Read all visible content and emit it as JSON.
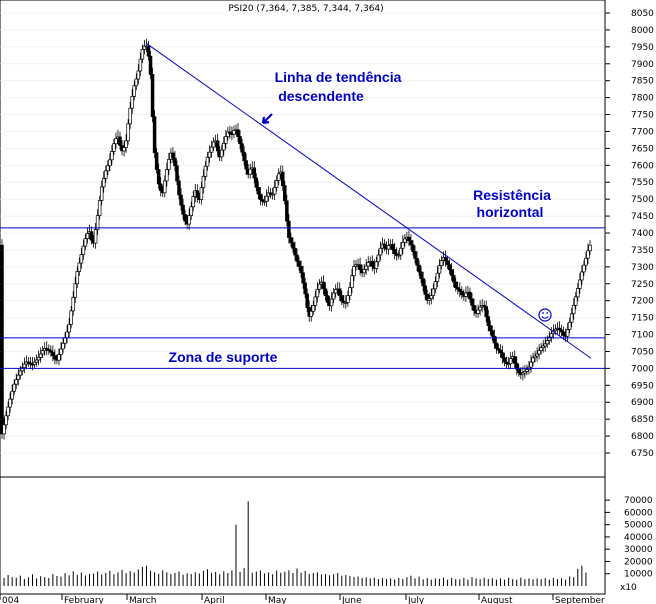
{
  "chart_data": {
    "type": "candlestick",
    "title": "PSI20 (7,364, 7,385, 7,344, 7,364)",
    "price_axis": {
      "ylim": [
        6750,
        8050
      ],
      "ticks": [
        6750,
        6800,
        6850,
        6900,
        6950,
        7000,
        7050,
        7100,
        7150,
        7200,
        7250,
        7300,
        7350,
        7400,
        7450,
        7500,
        7550,
        7600,
        7650,
        7700,
        7750,
        7800,
        7850,
        7900,
        7950,
        8000,
        8050
      ]
    },
    "volume_axis": {
      "ylim": [
        0,
        75000
      ],
      "ticks": [
        10000,
        20000,
        30000,
        40000,
        50000,
        60000,
        70000
      ],
      "unit_label": "x10"
    },
    "x_labels": [
      "004",
      "February",
      "March",
      "April",
      "May",
      "June",
      "July",
      "August",
      "September"
    ],
    "price_path": [
      [
        0,
        6800
      ],
      [
        6,
        6880
      ],
      [
        12,
        6950
      ],
      [
        18,
        6990
      ],
      [
        24,
        7020
      ],
      [
        30,
        7010
      ],
      [
        36,
        7030
      ],
      [
        42,
        7060
      ],
      [
        48,
        7050
      ],
      [
        54,
        7020
      ],
      [
        60,
        7070
      ],
      [
        66,
        7120
      ],
      [
        70,
        7200
      ],
      [
        74,
        7280
      ],
      [
        78,
        7330
      ],
      [
        82,
        7380
      ],
      [
        86,
        7410
      ],
      [
        90,
        7360
      ],
      [
        94,
        7440
      ],
      [
        98,
        7530
      ],
      [
        102,
        7580
      ],
      [
        106,
        7610
      ],
      [
        110,
        7660
      ],
      [
        114,
        7690
      ],
      [
        118,
        7640
      ],
      [
        122,
        7660
      ],
      [
        126,
        7760
      ],
      [
        130,
        7830
      ],
      [
        134,
        7870
      ],
      [
        138,
        7940
      ],
      [
        142,
        7960
      ],
      [
        146,
        7900
      ],
      [
        150,
        7650
      ],
      [
        154,
        7550
      ],
      [
        158,
        7510
      ],
      [
        162,
        7580
      ],
      [
        166,
        7640
      ],
      [
        170,
        7610
      ],
      [
        174,
        7520
      ],
      [
        178,
        7460
      ],
      [
        182,
        7420
      ],
      [
        186,
        7470
      ],
      [
        190,
        7530
      ],
      [
        194,
        7490
      ],
      [
        198,
        7560
      ],
      [
        202,
        7620
      ],
      [
        206,
        7650
      ],
      [
        210,
        7680
      ],
      [
        214,
        7620
      ],
      [
        218,
        7660
      ],
      [
        222,
        7700
      ],
      [
        226,
        7690
      ],
      [
        230,
        7710
      ],
      [
        234,
        7670
      ],
      [
        238,
        7620
      ],
      [
        242,
        7570
      ],
      [
        246,
        7600
      ],
      [
        250,
        7540
      ],
      [
        254,
        7500
      ],
      [
        258,
        7490
      ],
      [
        262,
        7520
      ],
      [
        266,
        7510
      ],
      [
        270,
        7550
      ],
      [
        274,
        7590
      ],
      [
        278,
        7510
      ],
      [
        282,
        7390
      ],
      [
        286,
        7360
      ],
      [
        290,
        7320
      ],
      [
        294,
        7290
      ],
      [
        298,
        7230
      ],
      [
        302,
        7150
      ],
      [
        306,
        7180
      ],
      [
        310,
        7230
      ],
      [
        314,
        7260
      ],
      [
        318,
        7220
      ],
      [
        322,
        7180
      ],
      [
        326,
        7220
      ],
      [
        330,
        7240
      ],
      [
        334,
        7200
      ],
      [
        338,
        7190
      ],
      [
        342,
        7230
      ],
      [
        346,
        7300
      ],
      [
        350,
        7310
      ],
      [
        354,
        7280
      ],
      [
        358,
        7300
      ],
      [
        362,
        7320
      ],
      [
        366,
        7290
      ],
      [
        370,
        7330
      ],
      [
        374,
        7370
      ],
      [
        378,
        7350
      ],
      [
        382,
        7370
      ],
      [
        386,
        7340
      ],
      [
        390,
        7330
      ],
      [
        394,
        7370
      ],
      [
        398,
        7390
      ],
      [
        402,
        7370
      ],
      [
        406,
        7330
      ],
      [
        410,
        7290
      ],
      [
        414,
        7250
      ],
      [
        418,
        7200
      ],
      [
        422,
        7210
      ],
      [
        426,
        7250
      ],
      [
        430,
        7300
      ],
      [
        434,
        7330
      ],
      [
        438,
        7310
      ],
      [
        442,
        7280
      ],
      [
        446,
        7240
      ],
      [
        450,
        7230
      ],
      [
        454,
        7210
      ],
      [
        458,
        7230
      ],
      [
        462,
        7190
      ],
      [
        466,
        7160
      ],
      [
        470,
        7180
      ],
      [
        474,
        7190
      ],
      [
        478,
        7130
      ],
      [
        482,
        7100
      ],
      [
        486,
        7060
      ],
      [
        490,
        7050
      ],
      [
        494,
        7020
      ],
      [
        498,
        7010
      ],
      [
        502,
        7040
      ],
      [
        506,
        7000
      ],
      [
        510,
        6980
      ],
      [
        514,
        6990
      ],
      [
        518,
        7000
      ],
      [
        522,
        7030
      ],
      [
        526,
        7040
      ],
      [
        530,
        7060
      ],
      [
        534,
        7070
      ],
      [
        538,
        7090
      ],
      [
        542,
        7110
      ],
      [
        546,
        7120
      ],
      [
        550,
        7110
      ],
      [
        554,
        7090
      ],
      [
        558,
        7130
      ],
      [
        562,
        7180
      ],
      [
        566,
        7230
      ],
      [
        570,
        7280
      ],
      [
        574,
        7320
      ],
      [
        578,
        7364
      ]
    ],
    "volume": [
      [
        2,
        6500
      ],
      [
        6,
        9000
      ],
      [
        10,
        7200
      ],
      [
        14,
        6800
      ],
      [
        18,
        8500
      ],
      [
        22,
        5800
      ],
      [
        26,
        7000
      ],
      [
        30,
        9500
      ],
      [
        34,
        6200
      ],
      [
        38,
        8000
      ],
      [
        42,
        7300
      ],
      [
        46,
        6600
      ],
      [
        50,
        9800
      ],
      [
        54,
        8200
      ],
      [
        58,
        7600
      ],
      [
        62,
        10500
      ],
      [
        66,
        8800
      ],
      [
        70,
        12000
      ],
      [
        74,
        9200
      ],
      [
        78,
        11000
      ],
      [
        82,
        8600
      ],
      [
        86,
        9800
      ],
      [
        90,
        10200
      ],
      [
        94,
        11800
      ],
      [
        98,
        9400
      ],
      [
        102,
        10800
      ],
      [
        106,
        12500
      ],
      [
        110,
        9600
      ],
      [
        114,
        11200
      ],
      [
        118,
        13000
      ],
      [
        122,
        10400
      ],
      [
        126,
        12200
      ],
      [
        130,
        11000
      ],
      [
        134,
        13500
      ],
      [
        138,
        15500
      ],
      [
        142,
        16500
      ],
      [
        146,
        12500
      ],
      [
        150,
        11200
      ],
      [
        154,
        10000
      ],
      [
        158,
        12800
      ],
      [
        162,
        11200
      ],
      [
        166,
        9800
      ],
      [
        170,
        10600
      ],
      [
        174,
        11800
      ],
      [
        178,
        9200
      ],
      [
        182,
        10400
      ],
      [
        186,
        9800
      ],
      [
        190,
        11200
      ],
      [
        194,
        10200
      ],
      [
        198,
        12400
      ],
      [
        202,
        13600
      ],
      [
        206,
        10800
      ],
      [
        210,
        11400
      ],
      [
        214,
        9600
      ],
      [
        218,
        12000
      ],
      [
        222,
        10600
      ],
      [
        226,
        12800
      ],
      [
        230,
        50000
      ],
      [
        234,
        11600
      ],
      [
        238,
        14600
      ],
      [
        242,
        69000
      ],
      [
        246,
        10800
      ],
      [
        250,
        11800
      ],
      [
        254,
        12600
      ],
      [
        258,
        10200
      ],
      [
        262,
        11000
      ],
      [
        266,
        9600
      ],
      [
        270,
        12600
      ],
      [
        274,
        10800
      ],
      [
        278,
        11600
      ],
      [
        282,
        12800
      ],
      [
        286,
        10600
      ],
      [
        290,
        14200
      ],
      [
        294,
        10800
      ],
      [
        298,
        12400
      ],
      [
        302,
        9800
      ],
      [
        306,
        10600
      ],
      [
        310,
        11200
      ],
      [
        314,
        9400
      ],
      [
        318,
        9800
      ],
      [
        322,
        8800
      ],
      [
        326,
        9600
      ],
      [
        330,
        10600
      ],
      [
        334,
        8400
      ],
      [
        338,
        9000
      ],
      [
        342,
        8200
      ],
      [
        346,
        7400
      ],
      [
        350,
        7800
      ],
      [
        354,
        6600
      ],
      [
        358,
        7000
      ],
      [
        362,
        6200
      ],
      [
        366,
        6800
      ],
      [
        370,
        5600
      ],
      [
        374,
        6400
      ],
      [
        378,
        5800
      ],
      [
        382,
        6200
      ],
      [
        386,
        5400
      ],
      [
        390,
        6600
      ],
      [
        394,
        5800
      ],
      [
        398,
        7200
      ],
      [
        402,
        8400
      ],
      [
        406,
        6200
      ],
      [
        410,
        7600
      ],
      [
        414,
        5400
      ],
      [
        418,
        6600
      ],
      [
        422,
        5200
      ],
      [
        426,
        6200
      ],
      [
        430,
        5800
      ],
      [
        434,
        6800
      ],
      [
        438,
        5200
      ],
      [
        442,
        6600
      ],
      [
        446,
        5600
      ],
      [
        450,
        5400
      ],
      [
        454,
        6600
      ],
      [
        458,
        5200
      ],
      [
        462,
        7200
      ],
      [
        466,
        6200
      ],
      [
        470,
        5600
      ],
      [
        474,
        6800
      ],
      [
        478,
        5800
      ],
      [
        482,
        6400
      ],
      [
        486,
        5200
      ],
      [
        490,
        6200
      ],
      [
        494,
        5200
      ],
      [
        498,
        6600
      ],
      [
        502,
        5600
      ],
      [
        506,
        5200
      ],
      [
        510,
        6800
      ],
      [
        514,
        5600
      ],
      [
        518,
        6200
      ],
      [
        522,
        5400
      ],
      [
        526,
        6200
      ],
      [
        530,
        5600
      ],
      [
        534,
        6400
      ],
      [
        538,
        5200
      ],
      [
        542,
        6600
      ],
      [
        546,
        5600
      ],
      [
        550,
        6200
      ],
      [
        554,
        5200
      ],
      [
        558,
        7800
      ],
      [
        562,
        7200
      ],
      [
        566,
        14000
      ],
      [
        570,
        16500
      ],
      [
        574,
        11000
      ]
    ],
    "overlays": {
      "trendline": {
        "start_price": 7960,
        "end_price": 7030
      },
      "horizontal_levels": [
        7415,
        7090,
        7000
      ]
    },
    "annotations": {
      "trend": [
        "Linha de tendência",
        "descendente"
      ],
      "resistance": [
        "Resistência",
        "horizontal"
      ],
      "support": "Zona de suporte"
    },
    "marker_glyph": "smiley-icon",
    "colors": {
      "line": "#0000cc",
      "annotation": "#0000c8",
      "up_fill": "#ffffff",
      "down_fill": "#000000",
      "candle_edge": "#000000",
      "volume": "#000000"
    }
  }
}
